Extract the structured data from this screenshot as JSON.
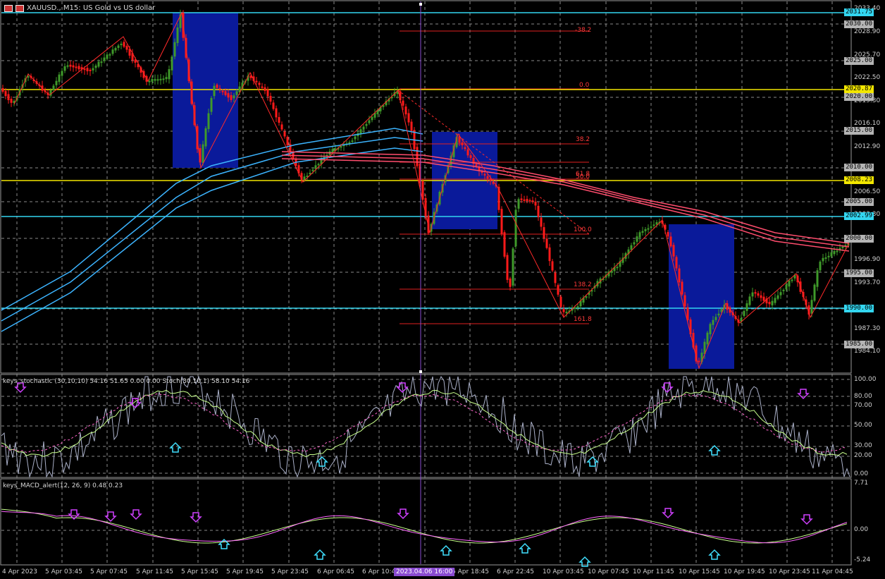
{
  "window": {
    "title": "XAUUSD., M15: US Gold vs US dollar"
  },
  "price_axis": {
    "ticks": [
      "2033.40",
      "2028.90",
      "2025.70",
      "2022.50",
      "2019.30",
      "2016.10",
      "2012.90",
      "2006.50",
      "2003.30",
      "1996.90",
      "1993.70",
      "1987.30",
      "1984.10"
    ],
    "highlighted_levels": [
      {
        "text": "2031.75",
        "style": "cyan"
      },
      {
        "text": "2030.00",
        "style": "gray"
      },
      {
        "text": "2025.00",
        "style": "gray"
      },
      {
        "text": "2020.87",
        "style": "yellow"
      },
      {
        "text": "2020.00",
        "style": "gray"
      },
      {
        "text": "2015.00",
        "style": "gray"
      },
      {
        "text": "2010.00",
        "style": "gray"
      },
      {
        "text": "2008.23",
        "style": "yellow"
      },
      {
        "text": "2005.00",
        "style": "gray"
      },
      {
        "text": "2002.99",
        "style": "cyan"
      },
      {
        "text": "2000.00",
        "style": "gray"
      },
      {
        "text": "1995.00",
        "style": "gray"
      },
      {
        "text": "1990.00",
        "style": "cyan"
      },
      {
        "text": "1985.00",
        "style": "gray"
      }
    ]
  },
  "fib_labels": [
    "-38.2",
    "0.0",
    "38.2",
    "50.0",
    "61.8",
    "100.0",
    "138.2",
    "161.8"
  ],
  "stochastic": {
    "label": "keys_stochastic (30,10,10) 54.16 51.65 0.00 0.00 Stoch(30,10,1) 58.10 54.16",
    "ticks": [
      "100.00",
      "80.00",
      "70.00",
      "50.00",
      "30.00",
      "20.00",
      "0.00"
    ]
  },
  "macd": {
    "label": "keys_MACD_alert(12, 26, 9) 0.48 0.23",
    "ticks": [
      "7.71",
      "0.00",
      "-5.24"
    ]
  },
  "time_axis": {
    "labels": [
      "4 Apr 2023",
      "5 Apr 03:45",
      "5 Apr 07:45",
      "5 Apr 11:45",
      "5 Apr 15:45",
      "5 Apr 19:45",
      "5 Apr 23:45",
      "6 Apr 06:45",
      "6 Apr 10:45",
      "6 Apr 18:45",
      "6 Apr 22:45",
      "10 Apr 03:45",
      "10 Apr 07:45",
      "10 Apr 11:45",
      "10 Apr 15:45",
      "10 Apr 19:45",
      "10 Apr 23:45",
      "11 Apr 04:45"
    ],
    "cursor_label": "2023.04.06 16:00"
  },
  "colors": {
    "background": "#000000",
    "grid": "#8a8a8a",
    "bull": "#3f9a2a",
    "bear": "#ff1a1a",
    "box": "#0a1a9a",
    "cyan_level": "#33d6f0",
    "yellow_level": "#f2e600",
    "ma_blue": "#3cb4ff",
    "ma_red": "#ff4d6d",
    "cursor": "#8a4bd1"
  }
}
